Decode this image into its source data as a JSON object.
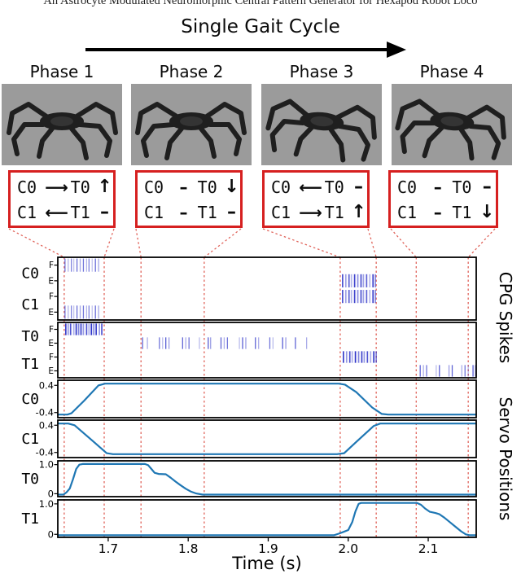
{
  "title_clipped": "An Astrocyte Modulated Neuromorphic Central Pattern Generator for Hexapod Robot Loco",
  "header": {
    "gait_label": "Single Gait Cycle"
  },
  "joints": {
    "c0": "C0",
    "c1": "C1",
    "t0": "T0",
    "t1": "T1"
  },
  "phases": [
    {
      "label": "Phase 1",
      "c0": "⟶",
      "t0": "↑",
      "c1": "⟵",
      "t1": "–"
    },
    {
      "label": "Phase 2",
      "c0": "–",
      "t0": "↓",
      "c1": "–",
      "t1": "–"
    },
    {
      "label": "Phase 3",
      "c0": "⟵",
      "t0": "–",
      "c1": "⟶",
      "t1": "↑"
    },
    {
      "label": "Phase 4",
      "c0": "–",
      "t0": "–",
      "c1": "–",
      "t1": "↓"
    }
  ],
  "colors": {
    "accent_red": "#d62020",
    "dashed_red": "#e0635a",
    "spike_blue": "#2f35c9",
    "line_blue": "#1f77b4",
    "robot_bg": "#9b9b9b"
  },
  "chart_data": {
    "type": "raster+line",
    "xlabel": "Time (s)",
    "xrange": [
      1.637,
      2.16
    ],
    "xticks": [
      {
        "v": 1.7,
        "label": "1.7"
      },
      {
        "v": 1.8,
        "label": "1.8"
      },
      {
        "v": 1.9,
        "label": "1.9"
      },
      {
        "v": 2.0,
        "label": "2.0"
      },
      {
        "v": 2.1,
        "label": "2.1"
      }
    ],
    "phase_boundaries": [
      1.645,
      1.695,
      1.741,
      1.82,
      1.99,
      2.035,
      2.085,
      2.15
    ],
    "right_labels": [
      "CPG Spikes",
      "Servo Positions"
    ],
    "row_sublabels": [
      "F",
      "E"
    ],
    "spike_panels": [
      {
        "name": "cpg-coxa-spikes",
        "rows": [
          {
            "joint": "C0",
            "sub": "F",
            "intensity": 0.72,
            "strong": false,
            "spikes": [
              1.646,
              1.65,
              1.654,
              1.657,
              1.661,
              1.665,
              1.669,
              1.673,
              1.676,
              1.68,
              1.684,
              1.688
            ]
          },
          {
            "joint": "C0",
            "sub": "E",
            "intensity": 0.92,
            "strong": true,
            "spikes": [
              1.993,
              1.997,
              2.001,
              2.004,
              2.008,
              2.012,
              2.016,
              2.019,
              2.023,
              2.027,
              2.031,
              2.034
            ]
          },
          {
            "joint": "C1",
            "sub": "F",
            "intensity": 0.92,
            "strong": true,
            "spikes": [
              1.993,
              1.997,
              2.001,
              2.004,
              2.008,
              2.012,
              2.016,
              2.019,
              2.023,
              2.027,
              2.031,
              2.034
            ]
          },
          {
            "joint": "C1",
            "sub": "E",
            "intensity": 0.72,
            "strong": false,
            "spikes": [
              1.646,
              1.65,
              1.654,
              1.657,
              1.661,
              1.665,
              1.669,
              1.673,
              1.676,
              1.68,
              1.684,
              1.688
            ]
          }
        ]
      },
      {
        "name": "cpg-trochanter-spikes",
        "rows": [
          {
            "joint": "T0",
            "sub": "F",
            "intensity": 1.0,
            "strong": true,
            "spikes": [
              1.647,
              1.65,
              1.653,
              1.657,
              1.66,
              1.663,
              1.666,
              1.669,
              1.673,
              1.676,
              1.679,
              1.682,
              1.685,
              1.689,
              1.692
            ]
          },
          {
            "joint": "T0",
            "sub": "E",
            "intensity": 0.8,
            "strong": false,
            "spikes": [
              1.743,
              1.749,
              1.764,
              1.768,
              1.772,
              1.776,
              1.793,
              1.797,
              1.801,
              1.814,
              1.825,
              1.828,
              1.841,
              1.845,
              1.849,
              1.864,
              1.868,
              1.872,
              1.884,
              1.888,
              1.902,
              1.906,
              1.918,
              1.922,
              1.934,
              1.948
            ]
          },
          {
            "joint": "T1",
            "sub": "F",
            "intensity": 1.0,
            "strong": true,
            "spikes": [
              1.994,
              1.998,
              2.002,
              2.005,
              2.009,
              2.013,
              2.017,
              2.02,
              2.024,
              2.028,
              2.032,
              2.035
            ]
          },
          {
            "joint": "T1",
            "sub": "E",
            "intensity": 0.8,
            "strong": false,
            "spikes": [
              2.09,
              2.094,
              2.098,
              2.11,
              2.114,
              2.126,
              2.13,
              2.142,
              2.146,
              2.15,
              2.156,
              2.159
            ]
          }
        ]
      }
    ],
    "servo_panels": [
      {
        "joint": "C0",
        "ymin": -0.55,
        "ymax": 0.55,
        "yticks": [
          {
            "v": 0.4,
            "label": "0.4"
          },
          {
            "v": -0.4,
            "label": "-0.4"
          }
        ],
        "points": [
          [
            1.637,
            -0.46
          ],
          [
            1.649,
            -0.46
          ],
          [
            1.654,
            -0.42
          ],
          [
            1.67,
            -0.05
          ],
          [
            1.688,
            0.4
          ],
          [
            1.696,
            0.45
          ],
          [
            1.988,
            0.45
          ],
          [
            1.996,
            0.42
          ],
          [
            2.01,
            0.2
          ],
          [
            2.03,
            -0.25
          ],
          [
            2.042,
            -0.44
          ],
          [
            2.05,
            -0.46
          ],
          [
            2.16,
            -0.46
          ]
        ]
      },
      {
        "joint": "C1",
        "ymin": -0.55,
        "ymax": 0.55,
        "yticks": [
          {
            "v": 0.4,
            "label": "0.4"
          },
          {
            "v": -0.4,
            "label": "-0.4"
          }
        ],
        "points": [
          [
            1.637,
            0.45
          ],
          [
            1.65,
            0.45
          ],
          [
            1.658,
            0.4
          ],
          [
            1.68,
            -0.05
          ],
          [
            1.698,
            -0.42
          ],
          [
            1.706,
            -0.45
          ],
          [
            1.986,
            -0.45
          ],
          [
            1.995,
            -0.42
          ],
          [
            2.012,
            -0.05
          ],
          [
            2.032,
            0.38
          ],
          [
            2.04,
            0.45
          ],
          [
            2.16,
            0.45
          ]
        ]
      },
      {
        "joint": "T0",
        "ymin": -0.1,
        "ymax": 1.13,
        "yticks": [
          {
            "v": 1.0,
            "label": "1.0"
          },
          {
            "v": 0.0,
            "label": "0"
          }
        ],
        "points": [
          [
            1.637,
            -0.03
          ],
          [
            1.644,
            -0.03
          ],
          [
            1.648,
            0.05
          ],
          [
            1.652,
            0.18
          ],
          [
            1.656,
            0.5
          ],
          [
            1.66,
            0.85
          ],
          [
            1.664,
            1.0
          ],
          [
            1.668,
            1.02
          ],
          [
            1.746,
            1.02
          ],
          [
            1.75,
            0.98
          ],
          [
            1.754,
            0.85
          ],
          [
            1.758,
            0.72
          ],
          [
            1.763,
            0.68
          ],
          [
            1.772,
            0.67
          ],
          [
            1.778,
            0.55
          ],
          [
            1.784,
            0.42
          ],
          [
            1.79,
            0.3
          ],
          [
            1.797,
            0.17
          ],
          [
            1.803,
            0.08
          ],
          [
            1.81,
            0.01
          ],
          [
            1.818,
            -0.03
          ],
          [
            2.16,
            -0.03
          ]
        ]
      },
      {
        "joint": "T1",
        "ymin": -0.1,
        "ymax": 1.13,
        "yticks": [
          {
            "v": 1.0,
            "label": "1.0"
          },
          {
            "v": 0.0,
            "label": "0"
          }
        ],
        "points": [
          [
            1.637,
            -0.03
          ],
          [
            1.982,
            -0.03
          ],
          [
            1.988,
            0.02
          ],
          [
            1.994,
            0.08
          ],
          [
            2.0,
            0.14
          ],
          [
            2.005,
            0.4
          ],
          [
            2.009,
            0.75
          ],
          [
            2.013,
            1.0
          ],
          [
            2.016,
            1.03
          ],
          [
            2.086,
            1.03
          ],
          [
            2.091,
            0.97
          ],
          [
            2.096,
            0.85
          ],
          [
            2.102,
            0.74
          ],
          [
            2.109,
            0.7
          ],
          [
            2.114,
            0.66
          ],
          [
            2.12,
            0.55
          ],
          [
            2.127,
            0.4
          ],
          [
            2.134,
            0.25
          ],
          [
            2.141,
            0.1
          ],
          [
            2.147,
            0.0
          ],
          [
            2.152,
            -0.03
          ],
          [
            2.16,
            -0.03
          ]
        ]
      }
    ]
  }
}
